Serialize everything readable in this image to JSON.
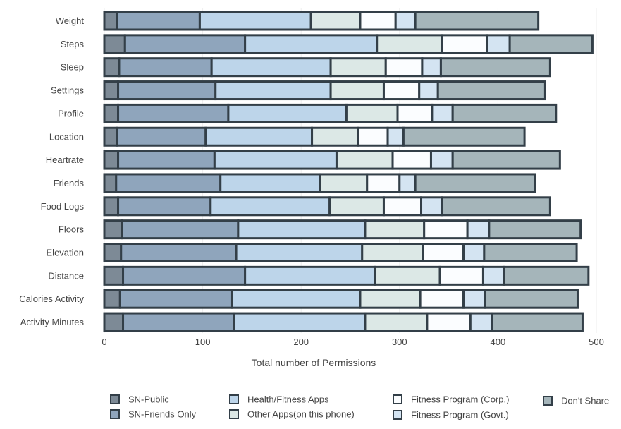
{
  "chart_data": {
    "type": "bar",
    "orientation": "horizontal",
    "stacked": true,
    "xlabel": "Total number of Permissions",
    "ylabel": "",
    "xlim": [
      0,
      500
    ],
    "xticks": [
      0,
      100,
      200,
      300,
      400,
      500
    ],
    "grid": true,
    "legend_position": "bottom",
    "categories": [
      "Weight",
      "Steps",
      "Sleep",
      "Settings",
      "Profile",
      "Location",
      "Heartrate",
      "Friends",
      "Food Logs",
      "Floors",
      "Elevation",
      "Distance",
      "Calories Activity",
      "Activity Minutes"
    ],
    "series": [
      {
        "name": "SN-Public",
        "color": "#7d8a96",
        "values": [
          13,
          21,
          15,
          14,
          14,
          13,
          14,
          12,
          14,
          18,
          17,
          19,
          16,
          19
        ]
      },
      {
        "name": "SN-Friends Only",
        "color": "#8fa5bc",
        "values": [
          84,
          122,
          94,
          99,
          112,
          90,
          98,
          106,
          94,
          118,
          117,
          124,
          114,
          113
        ]
      },
      {
        "name": "Health/Fitness Apps",
        "color": "#bdd5ea",
        "values": [
          113,
          134,
          121,
          117,
          120,
          108,
          124,
          101,
          121,
          129,
          128,
          132,
          130,
          133
        ]
      },
      {
        "name": "Other Apps(on this phone)",
        "color": "#dce8e6",
        "values": [
          50,
          66,
          56,
          54,
          52,
          47,
          57,
          48,
          55,
          60,
          62,
          66,
          61,
          63
        ]
      },
      {
        "name": "Fitness Program (Corp.)",
        "color": "#fbfdff",
        "values": [
          36,
          46,
          37,
          36,
          35,
          30,
          39,
          33,
          38,
          44,
          41,
          44,
          44,
          44
        ]
      },
      {
        "name": "Fitness Program (Govt.)",
        "color": "#d4e4f2",
        "values": [
          20,
          23,
          19,
          19,
          21,
          16,
          22,
          16,
          21,
          22,
          21,
          21,
          22,
          22
        ]
      },
      {
        "name": "Don't Share",
        "color": "#a5b5ba",
        "values": [
          125,
          84,
          111,
          109,
          105,
          123,
          109,
          122,
          110,
          93,
          94,
          86,
          94,
          92
        ]
      }
    ]
  }
}
